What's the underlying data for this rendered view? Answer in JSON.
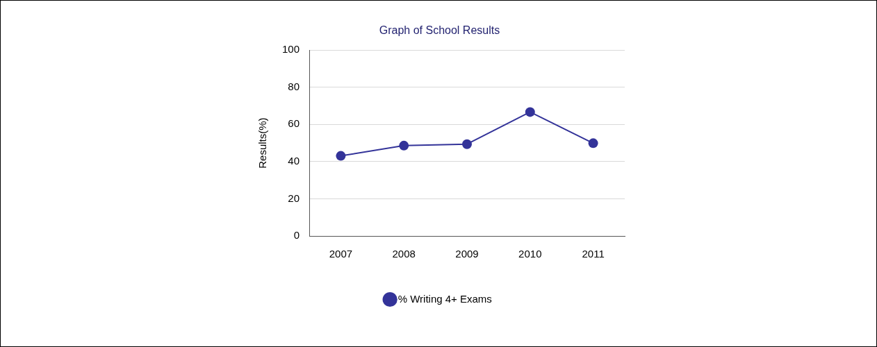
{
  "chart_data": {
    "type": "line",
    "title": "Graph of School Results",
    "ylabel": "Results(%)",
    "categories": [
      "2007",
      "2008",
      "2009",
      "2010",
      "2011"
    ],
    "series": [
      {
        "name": "% Writing 4+ Exams",
        "color": "#333399",
        "values": [
          43.1,
          48.6,
          49.4,
          66.7,
          49.9
        ]
      }
    ],
    "ylim": [
      0,
      100
    ],
    "yticks": [
      0,
      20,
      40,
      60,
      80,
      100
    ],
    "grid": "y",
    "legend": "bottom",
    "marker": "circle",
    "line_style": "solid"
  }
}
